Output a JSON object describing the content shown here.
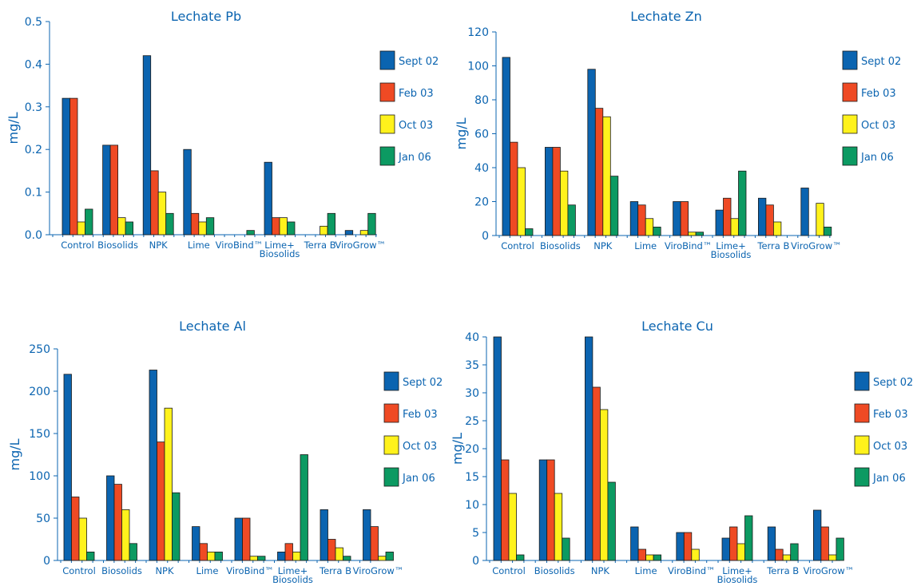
{
  "colors": {
    "text": "#0b64b0",
    "series": [
      "#0b64b0",
      "#ef4a24",
      "#fff21c",
      "#0c9a62"
    ]
  },
  "chart_data": [
    {
      "type": "bar",
      "title": "Lechate Pb",
      "ylabel": "mg/L",
      "ylim": [
        0,
        0.5
      ],
      "yticks": [
        "0.0",
        "0.1",
        "0.2",
        "0.3",
        "0.4",
        "0.5"
      ],
      "categories": [
        "Control",
        "Biosolids",
        "NPK",
        "Lime",
        "ViroBind™",
        "Lime+\nBiosolids",
        "Terra B",
        "ViroGrow™"
      ],
      "series": [
        {
          "name": "Sept 02",
          "values": [
            0.32,
            0.21,
            0.42,
            0.2,
            0,
            0.17,
            0,
            0.01
          ]
        },
        {
          "name": "Feb 03",
          "values": [
            0.32,
            0.21,
            0.15,
            0.05,
            0,
            0.04,
            0,
            0
          ]
        },
        {
          "name": "Oct 03",
          "values": [
            0.03,
            0.04,
            0.1,
            0.03,
            0,
            0.04,
            0.02,
            0.01
          ]
        },
        {
          "name": "Jan 06",
          "values": [
            0.06,
            0.03,
            0.05,
            0.04,
            0.01,
            0.03,
            0.05,
            0.05
          ]
        }
      ],
      "legend": "right"
    },
    {
      "type": "bar",
      "title": "Lechate Zn",
      "ylabel": "mg/L",
      "ylim": [
        0,
        120
      ],
      "yticks": [
        "0",
        "20",
        "40",
        "60",
        "80",
        "100",
        "120"
      ],
      "categories": [
        "Control",
        "Biosolids",
        "NPK",
        "Lime",
        "ViroBind™",
        "Lime+\nBiosolids",
        "Terra B",
        "ViroGrow™"
      ],
      "series": [
        {
          "name": "Sept 02",
          "values": [
            105,
            52,
            98,
            20,
            20,
            15,
            22,
            28
          ]
        },
        {
          "name": "Feb 03",
          "values": [
            55,
            52,
            75,
            18,
            20,
            22,
            18,
            0
          ]
        },
        {
          "name": "Oct 03",
          "values": [
            40,
            38,
            70,
            10,
            2,
            10,
            8,
            19
          ]
        },
        {
          "name": "Jan 06",
          "values": [
            4,
            18,
            35,
            5,
            2,
            38,
            0,
            5
          ]
        }
      ],
      "extra_note": "",
      "legend": "right"
    },
    {
      "type": "bar",
      "title": "Lechate Al",
      "ylabel": "mg/L",
      "ylim": [
        0,
        250
      ],
      "yticks": [
        "0",
        "50",
        "100",
        "150",
        "200",
        "250"
      ],
      "categories": [
        "Control",
        "Biosolids",
        "NPK",
        "Lime",
        "ViroBind™",
        "Lime+\nBiosolids",
        "Terra B",
        "ViroGrow™"
      ],
      "series": [
        {
          "name": "Sept 02",
          "values": [
            220,
            100,
            225,
            40,
            50,
            10,
            60,
            60
          ]
        },
        {
          "name": "Feb 03",
          "values": [
            75,
            90,
            140,
            20,
            50,
            20,
            25,
            40
          ]
        },
        {
          "name": "Oct 03",
          "values": [
            50,
            60,
            180,
            10,
            5,
            10,
            15,
            5
          ]
        },
        {
          "name": "Jan 06",
          "values": [
            10,
            20,
            80,
            10,
            5,
            125,
            5,
            10
          ]
        }
      ],
      "legend": "right"
    },
    {
      "type": "bar",
      "title": "Lechate Cu",
      "ylabel": "mg/L",
      "ylim": [
        0,
        40
      ],
      "yticks": [
        "0",
        "5",
        "10",
        "15",
        "20",
        "25",
        "30",
        "35",
        "40"
      ],
      "categories": [
        "Control",
        "Biosolids",
        "NPK",
        "Lime",
        "ViroBind™",
        "Lime+\nBiosolids",
        "Terra B",
        "ViroGrow™"
      ],
      "series": [
        {
          "name": "Sept 02",
          "values": [
            40,
            18,
            40,
            6,
            5,
            4,
            6,
            9
          ]
        },
        {
          "name": "Feb 03",
          "values": [
            18,
            18,
            31,
            2,
            5,
            6,
            2,
            6
          ]
        },
        {
          "name": "Oct 03",
          "values": [
            12,
            12,
            27,
            1,
            2,
            3,
            1,
            1
          ]
        },
        {
          "name": "Jan 06",
          "values": [
            1,
            4,
            14,
            1,
            0,
            8,
            3,
            4
          ]
        }
      ],
      "legend": "right"
    }
  ]
}
